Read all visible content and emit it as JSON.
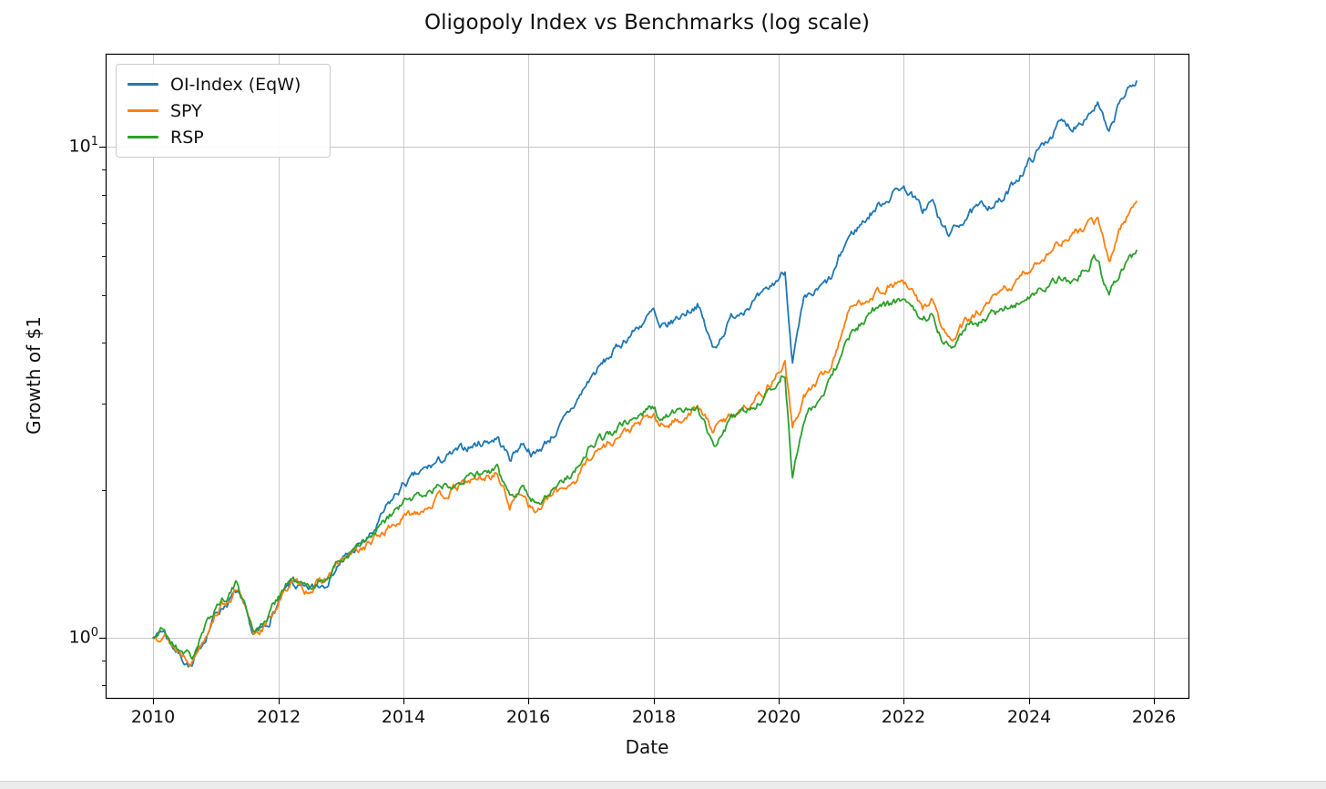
{
  "chart_data": {
    "type": "line",
    "title": "Oligopoly Index vs Benchmarks (log scale)",
    "xlabel": "Date",
    "ylabel": "Growth of $1",
    "yscale": "log",
    "grid": true,
    "legend_position": "upper left",
    "xlim": [
      2009.24,
      2026.55
    ],
    "ylim": [
      0.754,
      15.5
    ],
    "x_ticks": [
      2010,
      2012,
      2014,
      2016,
      2018,
      2020,
      2022,
      2024,
      2026
    ],
    "y_ticks": [
      1,
      10
    ],
    "y_tick_exponents": [
      0,
      1
    ],
    "y_minor_ticks": [
      0.8,
      0.9,
      2,
      3,
      4,
      5,
      6,
      7,
      8,
      9
    ],
    "x": [
      2010.0,
      2010.15,
      2010.35,
      2010.5,
      2010.62,
      2010.75,
      2011.0,
      2011.35,
      2011.6,
      2011.8,
      2012.0,
      2012.2,
      2012.45,
      2012.75,
      2013.0,
      2013.5,
      2013.75,
      2014.0,
      2014.5,
      2015.0,
      2015.5,
      2015.7,
      2015.9,
      2016.1,
      2016.5,
      2016.75,
      2017.0,
      2017.5,
      2018.0,
      2018.1,
      2018.4,
      2018.7,
      2018.95,
      2019.25,
      2019.5,
      2019.75,
      2020.1,
      2020.22,
      2020.4,
      2020.6,
      2020.85,
      2021.1,
      2021.5,
      2021.7,
      2021.95,
      2022.1,
      2022.3,
      2022.45,
      2022.6,
      2022.75,
      2023.0,
      2023.3,
      2023.6,
      2023.8,
      2024.0,
      2024.3,
      2024.5,
      2024.7,
      2025.0,
      2025.1,
      2025.28,
      2025.45,
      2025.55,
      2025.65,
      2025.72
    ],
    "series": [
      {
        "name": "OI-Index (EqW)",
        "color": "#1f77b4",
        "values": [
          1.0,
          1.04,
          0.95,
          0.9,
          0.87,
          0.95,
          1.12,
          1.24,
          1.01,
          1.05,
          1.17,
          1.29,
          1.24,
          1.3,
          1.43,
          1.62,
          1.85,
          2.05,
          2.26,
          2.44,
          2.56,
          2.32,
          2.5,
          2.36,
          2.68,
          3.0,
          3.4,
          4.0,
          4.62,
          4.2,
          4.5,
          4.8,
          3.86,
          4.5,
          4.77,
          4.95,
          5.6,
          3.68,
          4.8,
          5.05,
          5.4,
          6.5,
          7.4,
          7.8,
          8.32,
          8.1,
          7.4,
          7.8,
          6.9,
          6.65,
          7.25,
          7.6,
          7.8,
          8.6,
          9.3,
          10.4,
          11.2,
          11.0,
          11.9,
          12.3,
          10.5,
          12.3,
          12.9,
          13.2,
          13.7
        ]
      },
      {
        "name": "SPY",
        "color": "#ff7f0e",
        "values": [
          1.0,
          1.03,
          0.95,
          0.92,
          0.9,
          0.97,
          1.13,
          1.25,
          1.02,
          1.06,
          1.18,
          1.3,
          1.25,
          1.31,
          1.43,
          1.57,
          1.67,
          1.75,
          1.9,
          2.07,
          2.16,
          1.86,
          2.0,
          1.8,
          2.01,
          2.1,
          2.36,
          2.6,
          2.84,
          2.68,
          2.78,
          2.95,
          2.65,
          2.85,
          3.0,
          3.15,
          3.64,
          2.65,
          3.1,
          3.3,
          3.6,
          4.61,
          5.03,
          5.15,
          5.32,
          5.1,
          4.7,
          4.9,
          4.3,
          4.0,
          4.4,
          4.7,
          5.1,
          5.3,
          5.62,
          6.1,
          6.4,
          6.6,
          7.0,
          7.1,
          5.8,
          6.8,
          7.2,
          7.5,
          7.82
        ]
      },
      {
        "name": "RSP",
        "color": "#2ca02c",
        "values": [
          1.0,
          1.04,
          0.96,
          0.94,
          0.91,
          0.99,
          1.16,
          1.29,
          1.04,
          1.08,
          1.22,
          1.32,
          1.26,
          1.32,
          1.44,
          1.6,
          1.74,
          1.88,
          2.01,
          2.14,
          2.19,
          1.94,
          2.05,
          1.88,
          2.07,
          2.2,
          2.49,
          2.7,
          2.96,
          2.78,
          2.88,
          3.0,
          2.44,
          2.8,
          2.92,
          3.05,
          3.48,
          2.11,
          2.8,
          3.0,
          3.4,
          4.06,
          4.67,
          4.75,
          4.85,
          4.7,
          4.4,
          4.6,
          4.1,
          3.94,
          4.35,
          4.4,
          4.73,
          4.8,
          4.92,
          5.2,
          5.37,
          5.3,
          5.87,
          5.9,
          4.88,
          5.6,
          5.8,
          5.95,
          6.08
        ]
      }
    ]
  }
}
